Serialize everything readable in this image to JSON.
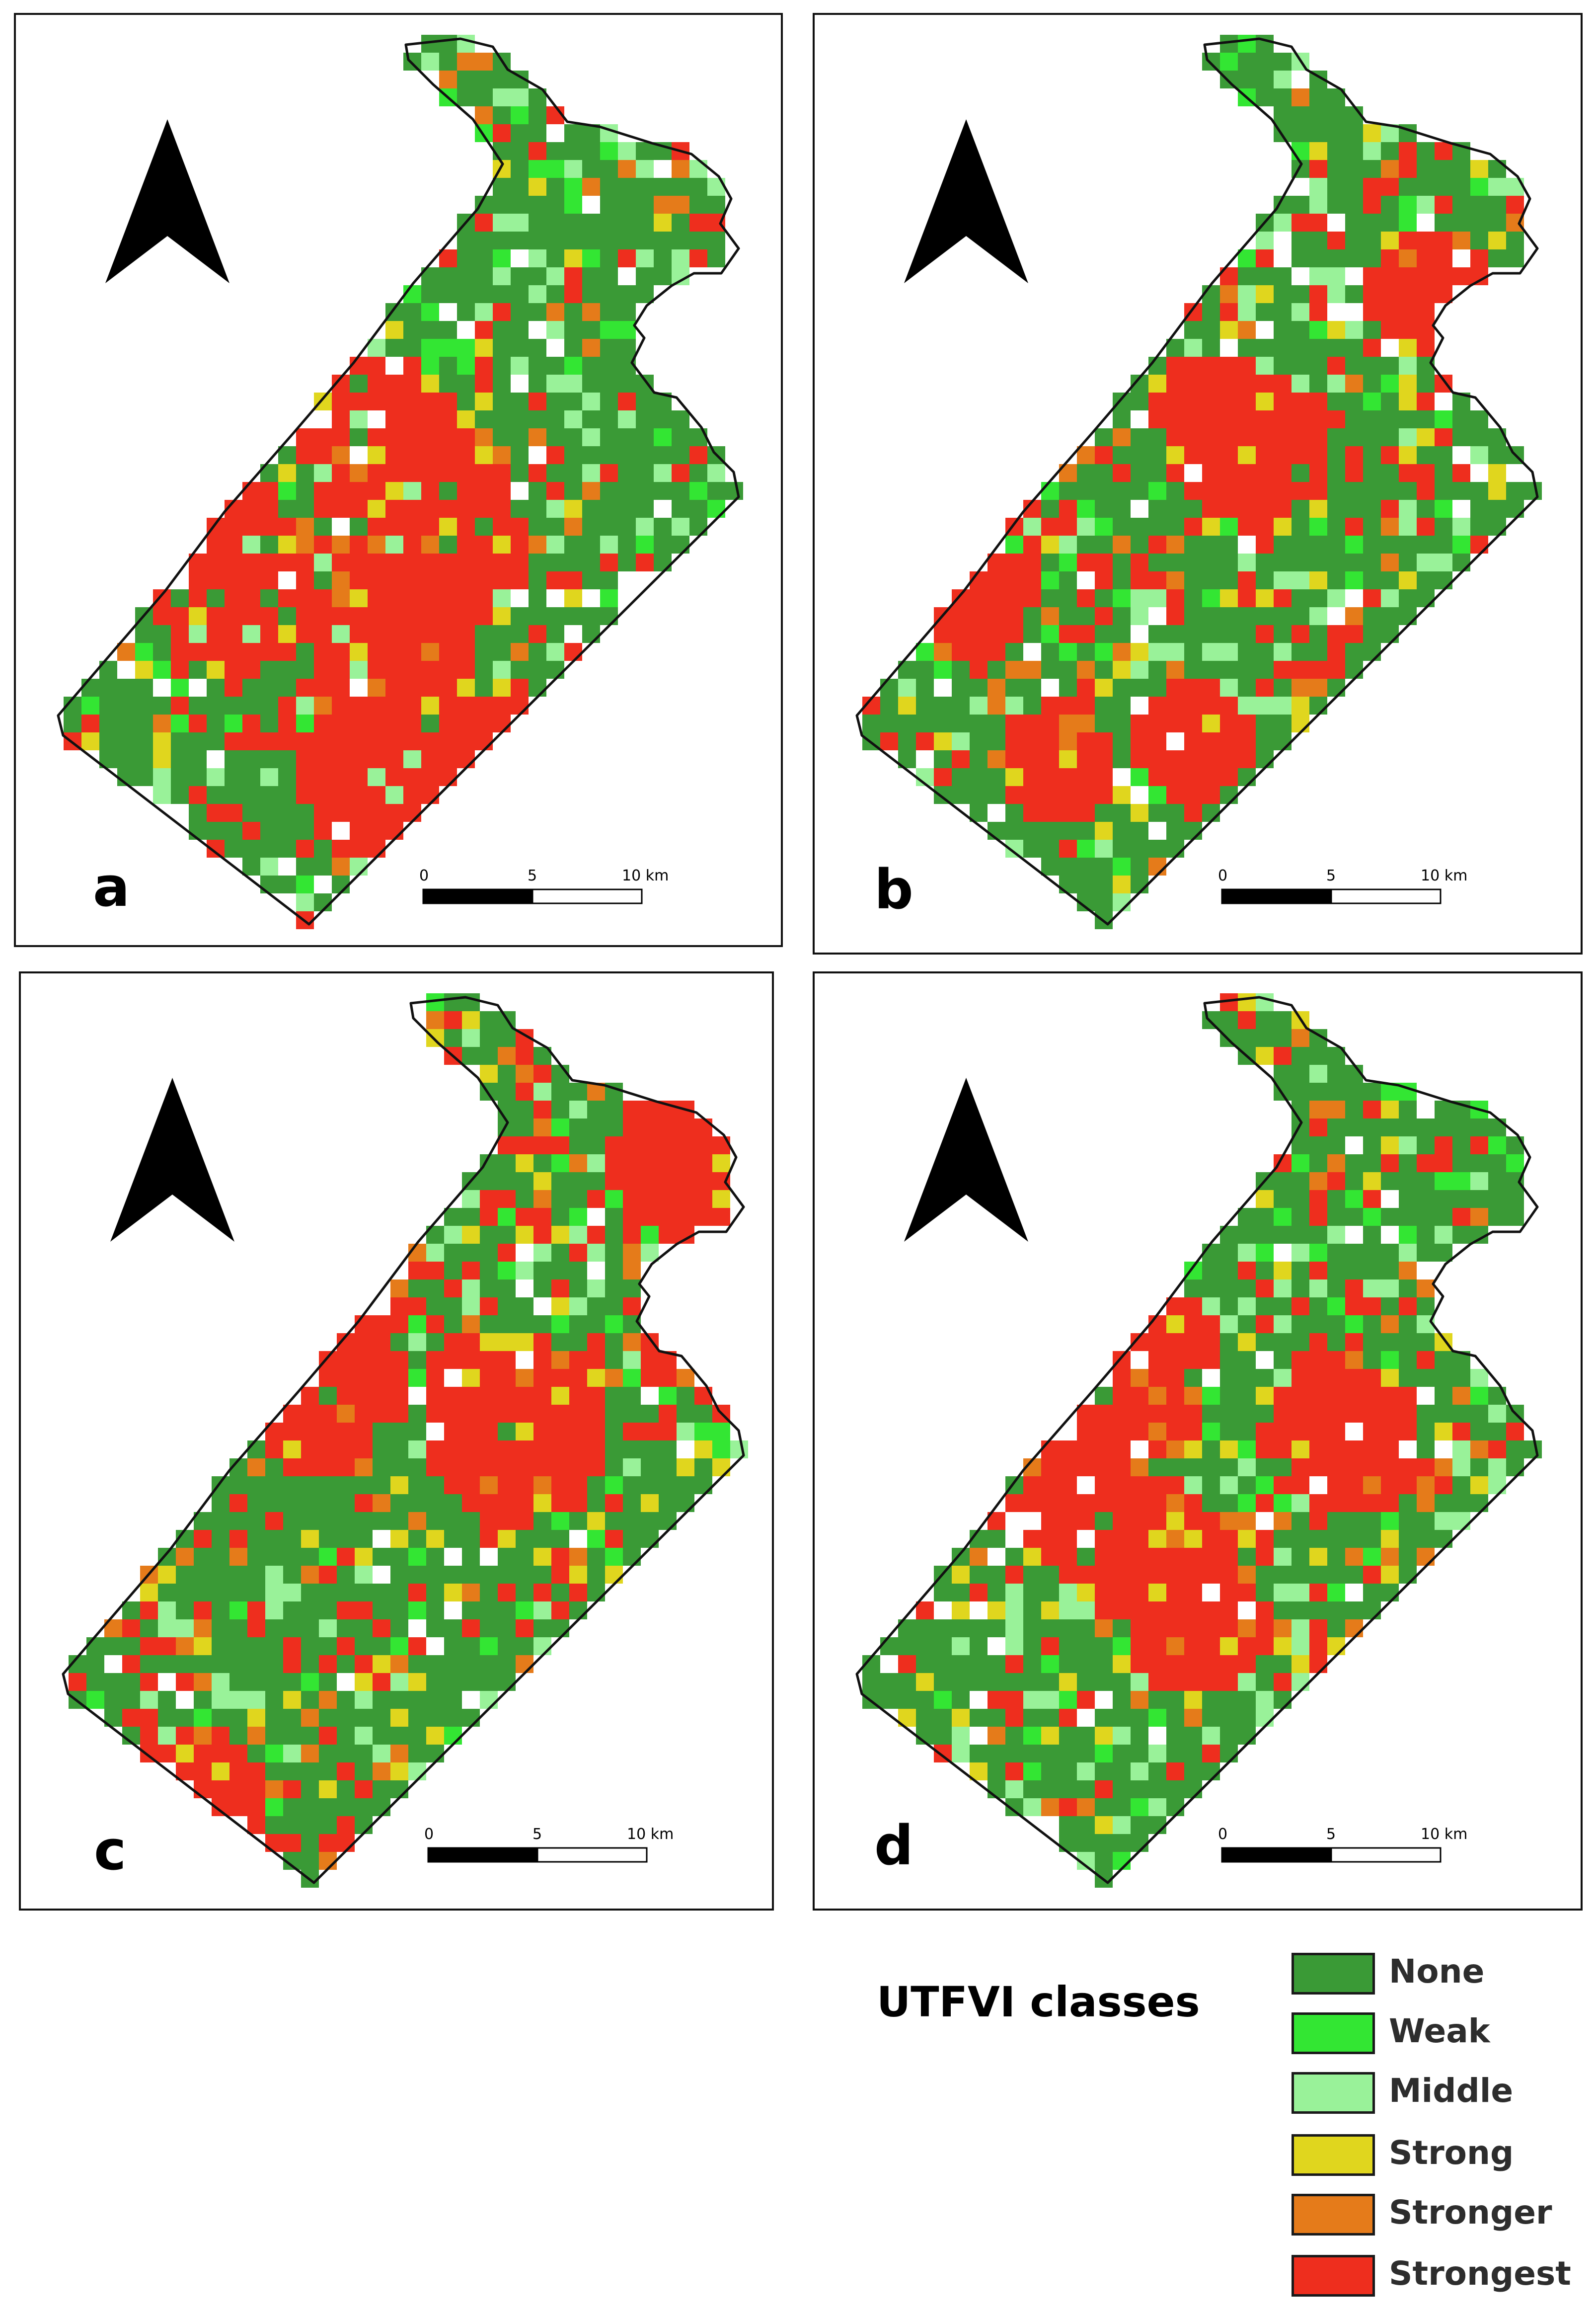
{
  "panels": [
    {
      "id": "a",
      "letter": "a",
      "seed": 11,
      "redBias": 0.28
    },
    {
      "id": "b",
      "letter": "b",
      "seed": 27,
      "redBias": 0.36
    },
    {
      "id": "c",
      "letter": "c",
      "seed": 43,
      "redBias": 0.38
    },
    {
      "id": "d",
      "letter": "d",
      "seed": 59,
      "redBias": 0.33
    }
  ],
  "scalebar": {
    "label0": "0",
    "label5": "5",
    "label10": "10 km"
  },
  "legend": {
    "title": "UTFVI classes",
    "classes": [
      {
        "label": "None",
        "color": "#3a9a36"
      },
      {
        "label": "Weak",
        "color": "#33e633"
      },
      {
        "label": "Middle",
        "color": "#99f299"
      },
      {
        "label": "Strong",
        "color": "#e0d61e"
      },
      {
        "label": "Stronger",
        "color": "#e57b1a"
      },
      {
        "label": "Strongest",
        "color": "#ee2e1e"
      }
    ]
  }
}
